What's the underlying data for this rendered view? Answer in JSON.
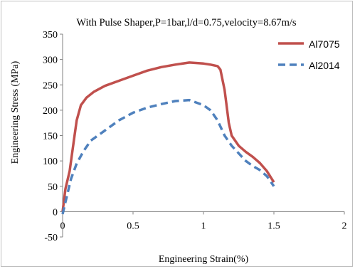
{
  "chart_data": {
    "type": "line",
    "title": "With Pulse Shaper,P=1bar,l/d=0.75,velocity=8.67m/s",
    "xlabel": "Engineering Strain(%)",
    "ylabel": "Engineering Stress (MPa)",
    "xlim": [
      0,
      2
    ],
    "ylim": [
      -50,
      350
    ],
    "x_ticks": [
      0,
      0.5,
      1,
      1.5,
      2
    ],
    "x_tick_labels": [
      "0",
      "0.5",
      "1",
      "1.5",
      "2"
    ],
    "y_ticks": [
      -50,
      0,
      50,
      100,
      150,
      200,
      250,
      300,
      350
    ],
    "y_tick_labels": [
      "-50",
      "0",
      "50",
      "100",
      "150",
      "200",
      "250",
      "300",
      "350"
    ],
    "grid": false,
    "legend_position": "top-right",
    "series": [
      {
        "name": "Al7075",
        "color": "#c0504d",
        "style": "solid",
        "points": [
          [
            0.0,
            0
          ],
          [
            0.02,
            45
          ],
          [
            0.05,
            80
          ],
          [
            0.08,
            140
          ],
          [
            0.1,
            180
          ],
          [
            0.13,
            210
          ],
          [
            0.17,
            225
          ],
          [
            0.22,
            236
          ],
          [
            0.3,
            248
          ],
          [
            0.4,
            258
          ],
          [
            0.5,
            268
          ],
          [
            0.6,
            278
          ],
          [
            0.7,
            285
          ],
          [
            0.8,
            290
          ],
          [
            0.9,
            294
          ],
          [
            1.0,
            292
          ],
          [
            1.05,
            290
          ],
          [
            1.1,
            287
          ],
          [
            1.12,
            280
          ],
          [
            1.15,
            240
          ],
          [
            1.18,
            175
          ],
          [
            1.2,
            150
          ],
          [
            1.25,
            130
          ],
          [
            1.3,
            118
          ],
          [
            1.35,
            108
          ],
          [
            1.4,
            96
          ],
          [
            1.45,
            80
          ],
          [
            1.5,
            58
          ]
        ]
      },
      {
        "name": "Al2014",
        "color": "#4f81bd",
        "style": "dashed",
        "points": [
          [
            0.0,
            -5
          ],
          [
            0.03,
            30
          ],
          [
            0.06,
            65
          ],
          [
            0.1,
            95
          ],
          [
            0.15,
            120
          ],
          [
            0.2,
            140
          ],
          [
            0.3,
            160
          ],
          [
            0.4,
            180
          ],
          [
            0.5,
            195
          ],
          [
            0.6,
            205
          ],
          [
            0.7,
            212
          ],
          [
            0.8,
            218
          ],
          [
            0.9,
            220
          ],
          [
            1.0,
            210
          ],
          [
            1.05,
            200
          ],
          [
            1.1,
            180
          ],
          [
            1.15,
            150
          ],
          [
            1.2,
            130
          ],
          [
            1.25,
            115
          ],
          [
            1.3,
            100
          ],
          [
            1.35,
            90
          ],
          [
            1.4,
            82
          ],
          [
            1.45,
            70
          ],
          [
            1.5,
            50
          ]
        ]
      }
    ]
  }
}
